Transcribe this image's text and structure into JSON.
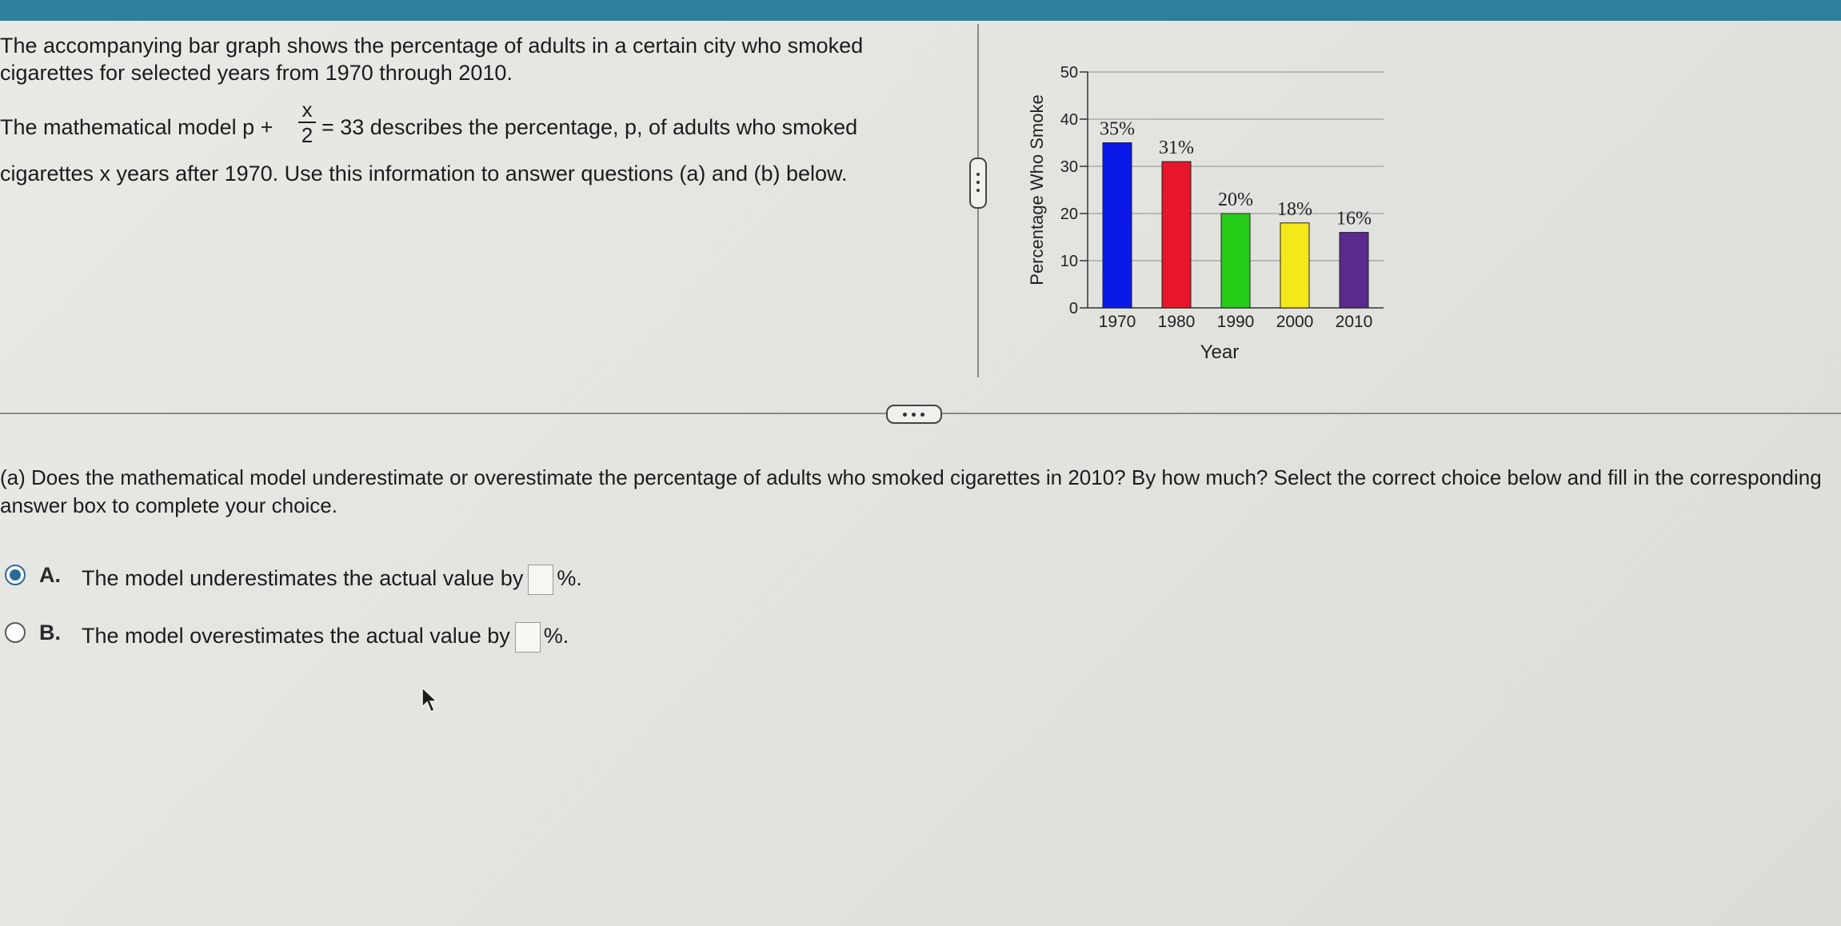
{
  "intro": {
    "line1": "The accompanying bar graph shows the percentage of adults in a certain city who smoked",
    "line2": "cigarettes for selected years from 1970 through 2010.",
    "model_prefix": "The mathematical model p +",
    "model_numerator": "x",
    "model_denominator": "2",
    "model_suffix": "= 33 describes the percentage, p, of adults who smoked",
    "line3": "cigarettes x years after 1970. Use this information to answer questions (a) and (b) below."
  },
  "chart_data": {
    "type": "bar",
    "categories": [
      "1970",
      "1980",
      "1990",
      "2000",
      "2010"
    ],
    "values": [
      35,
      31,
      20,
      18,
      16
    ],
    "data_labels": [
      "35%",
      "31%",
      "20%",
      "18%",
      "16%"
    ],
    "colors": [
      "#0a18e8",
      "#e8162a",
      "#25cc18",
      "#f4e81a",
      "#5a2a8c"
    ],
    "xlabel": "Year",
    "ylabel": "Percentage Who Smoke",
    "ylim": [
      0,
      50
    ],
    "yticks": [
      0,
      10,
      20,
      30,
      40,
      50
    ],
    "grid": true
  },
  "question": {
    "text": "(a) Does the mathematical model underestimate or overestimate the percentage of adults who smoked cigarettes in 2010? By how much? Select the correct choice below and fill in the corresponding answer box to complete your choice.",
    "choices": [
      {
        "letter": "A.",
        "text": "The model underestimates the actual value by",
        "suffix": "%.",
        "value": "",
        "selected": true
      },
      {
        "letter": "B.",
        "text": "The model overestimates the actual value by",
        "suffix": "%.",
        "value": "",
        "selected": false
      }
    ]
  }
}
